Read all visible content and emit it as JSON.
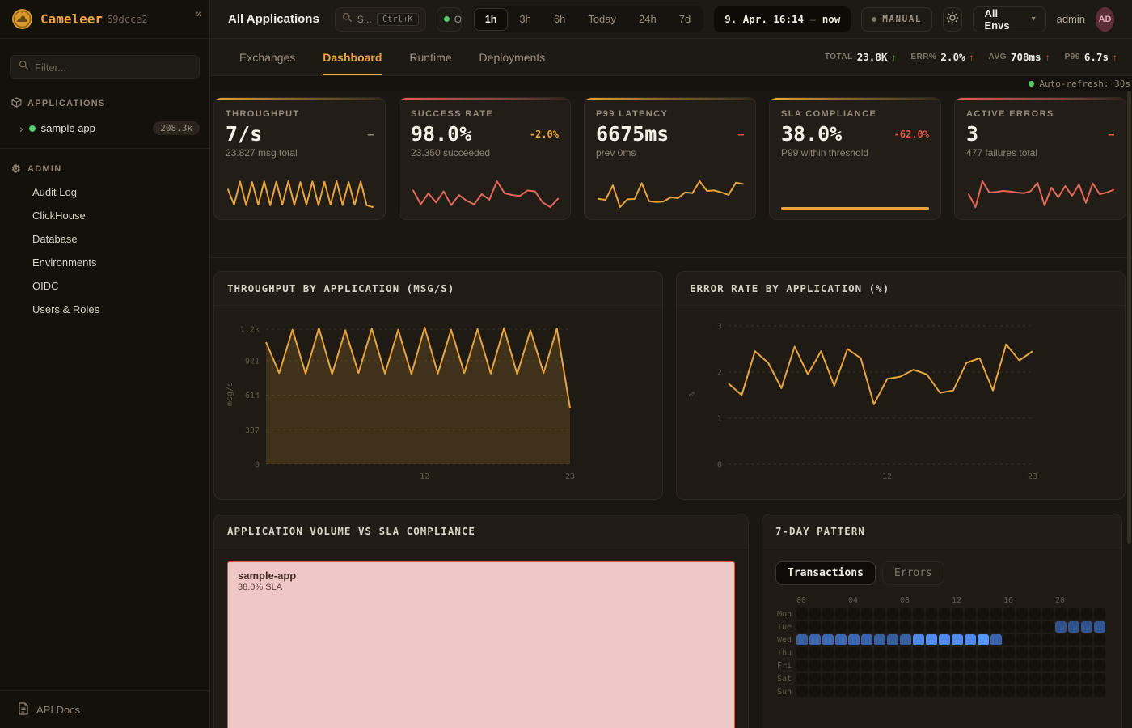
{
  "sidebar": {
    "logo_text": "Cameleer",
    "version": "69dcce2",
    "collapse_icon": "«",
    "filter_placeholder": "Filter...",
    "sections": {
      "applications_label": "APPLICATIONS",
      "admin_label": "ADMIN"
    },
    "app_item": {
      "name": "sample app",
      "badge": "208.3k",
      "status_color": "#57c96a"
    },
    "admin_items": [
      "Audit Log",
      "ClickHouse",
      "Database",
      "Environments",
      "OIDC",
      "Users & Roles"
    ],
    "footer": {
      "api_docs": "API Docs"
    }
  },
  "topbar": {
    "title": "All Applications",
    "search_text": "S...",
    "search_shortcut": "Ctrl+K",
    "online_text": "O",
    "time_ranges": [
      "1h",
      "3h",
      "6h",
      "Today",
      "24h",
      "7d"
    ],
    "active_range": "1h",
    "datetime": "9. Apr. 16:14",
    "datetime_sep": "–",
    "datetime_now": "now",
    "manual_label": "MANUAL",
    "env_select": "All Envs",
    "user": "admin",
    "avatar": "AD"
  },
  "tabs": {
    "items": [
      "Exchanges",
      "Dashboard",
      "Runtime",
      "Deployments"
    ],
    "active": "Dashboard"
  },
  "stats": [
    {
      "label": "TOTAL",
      "value": "23.8K",
      "arrow": "↑",
      "trend": "good"
    },
    {
      "label": "ERR%",
      "value": "2.0%",
      "arrow": "↑",
      "trend": "bad"
    },
    {
      "label": "AVG",
      "value": "708ms",
      "arrow": "↑",
      "trend": "bad"
    },
    {
      "label": "P99",
      "value": "6.7s",
      "arrow": "↑",
      "trend": "bad"
    }
  ],
  "auto_refresh": "Auto-refresh: 30s",
  "kpi_cards": [
    {
      "title": "THROUGHPUT",
      "value": "7/s",
      "delta": "–",
      "delta_color": "muted",
      "subtitle": "23.827 msg total",
      "accent": "orange",
      "spark": {
        "type": "line",
        "color": "#e8a53e",
        "values": [
          1060,
          800,
          1200,
          795,
          1190,
          800,
          1200,
          790,
          1195,
          800,
          1205,
          795,
          1190,
          800,
          1200,
          790,
          1195,
          800,
          1205,
          795,
          1190,
          800,
          1200,
          790,
          760
        ]
      }
    },
    {
      "title": "SUCCESS RATE",
      "value": "98.0%",
      "delta": "-2.0%",
      "delta_color": "orange",
      "subtitle": "23.350 succeeded",
      "accent": "red",
      "spark": {
        "type": "line",
        "color": "#e2695c",
        "values": [
          98.4,
          96.9,
          98.1,
          97.1,
          98.3,
          96.8,
          97.9,
          97.3,
          96.9,
          98.0,
          97.4,
          99.4,
          98.1,
          97.9,
          97.8,
          98.4,
          98.3,
          97.1,
          96.6,
          97.5
        ]
      }
    },
    {
      "title": "P99 LATENCY",
      "value": "6675ms",
      "delta": "–",
      "delta_color": "red",
      "subtitle": "prev 0ms",
      "accent": "orange",
      "spark": {
        "type": "line",
        "color": "#e8a53e",
        "values": [
          420,
          380,
          900,
          120,
          400,
          410,
          980,
          330,
          300,
          320,
          470,
          440,
          650,
          620,
          1050,
          700,
          720,
          650,
          560,
          1000,
          950
        ]
      }
    },
    {
      "title": "SLA COMPLIANCE",
      "value": "38.0%",
      "delta": "-62.0%",
      "delta_color": "red",
      "subtitle": "P99 within threshold",
      "accent": "orange",
      "spark": {
        "type": "bar",
        "color": "#e8a53e",
        "value": 38
      }
    },
    {
      "title": "ACTIVE ERRORS",
      "value": "3",
      "delta": "–",
      "delta_color": "red",
      "subtitle": "477 failures total",
      "accent": "red",
      "spark": {
        "type": "line",
        "color": "#e2695c",
        "values": [
          55,
          15,
          95,
          60,
          62,
          65,
          63,
          60,
          58,
          64,
          90,
          20,
          75,
          45,
          80,
          50,
          85,
          28,
          88,
          55,
          60,
          68
        ]
      }
    }
  ],
  "chart_data": [
    {
      "id": "throughput-by-application",
      "type": "area",
      "title": "THROUGHPUT BY APPLICATION (MSG/S)",
      "ylabel": "msg/s",
      "ylim": [
        0,
        1250
      ],
      "y_ticks": [
        {
          "v": 0,
          "label": "0"
        },
        {
          "v": 307,
          "label": "307"
        },
        {
          "v": 614,
          "label": "614"
        },
        {
          "v": 921,
          "label": "921"
        },
        {
          "v": 1200,
          "label": "1.2k"
        }
      ],
      "x_ticks": [
        {
          "pos": 12,
          "label": "12"
        },
        {
          "pos": 23,
          "label": "23"
        }
      ],
      "color": "#e8a53e",
      "fill": true,
      "series": [
        {
          "name": "sample-app",
          "values": [
            1085,
            810,
            1195,
            805,
            1210,
            800,
            1190,
            810,
            1205,
            805,
            1195,
            800,
            1215,
            805,
            1195,
            810,
            1200,
            805,
            1210,
            800,
            1190,
            810,
            1205,
            500
          ]
        }
      ]
    },
    {
      "id": "error-rate-by-application",
      "type": "line",
      "title": "ERROR RATE BY APPLICATION (%)",
      "ylabel": "%",
      "ylim": [
        0,
        3.05
      ],
      "y_ticks": [
        {
          "v": 0,
          "label": "0"
        },
        {
          "v": 1,
          "label": "1"
        },
        {
          "v": 2,
          "label": "2"
        },
        {
          "v": 3,
          "label": "3"
        }
      ],
      "x_ticks": [
        {
          "pos": 12,
          "label": "12"
        },
        {
          "pos": 23,
          "label": "23"
        }
      ],
      "color": "#e8a53e",
      "fill": false,
      "series": [
        {
          "name": "sample-app",
          "values": [
            1.75,
            1.5,
            2.45,
            2.2,
            1.65,
            2.55,
            1.95,
            2.45,
            1.7,
            2.5,
            2.3,
            1.3,
            1.85,
            1.9,
            2.05,
            1.95,
            1.55,
            1.6,
            2.2,
            2.3,
            1.6,
            2.6,
            2.25,
            2.45
          ]
        }
      ]
    },
    {
      "id": "application-volume-vs-sla",
      "type": "treemap",
      "title": "APPLICATION VOLUME VS SLA COMPLIANCE",
      "items": [
        {
          "name": "sample-app",
          "sla": "38.0% SLA",
          "fill": "#efc7c6",
          "border": "#cf5348",
          "text": "#472a24",
          "subtext": "#5d423c"
        }
      ]
    },
    {
      "id": "seven-day-pattern",
      "type": "heatmap",
      "title": "7-DAY PATTERN",
      "toggle": [
        "Transactions",
        "Errors"
      ],
      "active_toggle": "Transactions",
      "days": [
        "Mon",
        "Tue",
        "Wed",
        "Thu",
        "Fri",
        "Sat",
        "Sun"
      ],
      "hour_labels": [
        {
          "col": 0,
          "label": "00"
        },
        {
          "col": 4,
          "label": "04"
        },
        {
          "col": 8,
          "label": "08"
        },
        {
          "col": 12,
          "label": "12"
        },
        {
          "col": 16,
          "label": "16"
        },
        {
          "col": 20,
          "label": "20"
        }
      ],
      "accent": "#3f83f8",
      "cells": {
        "Mon": [
          0,
          0,
          0,
          0,
          0,
          0,
          0,
          0,
          0,
          0,
          0,
          0,
          0,
          0,
          0,
          0,
          0,
          0,
          0,
          0,
          0,
          0,
          0,
          0
        ],
        "Tue": [
          0,
          0,
          0,
          0,
          0,
          0,
          0,
          0,
          0,
          0,
          0,
          0,
          0,
          0,
          0,
          0,
          0,
          0,
          0,
          0,
          0.3,
          0.32,
          0.32,
          0.35
        ],
        "Wed": [
          0.45,
          0.5,
          0.55,
          0.55,
          0.55,
          0.5,
          0.45,
          0.42,
          0.45,
          0.85,
          0.9,
          0.88,
          0.9,
          0.88,
          1.0,
          0.5,
          0,
          0,
          0,
          0,
          0,
          0,
          0,
          0
        ],
        "Thu": [
          0,
          0,
          0,
          0,
          0,
          0,
          0,
          0,
          0,
          0,
          0,
          0,
          0,
          0,
          0,
          0,
          0,
          0,
          0,
          0,
          0,
          0,
          0,
          0
        ],
        "Fri": [
          0,
          0,
          0,
          0,
          0,
          0,
          0,
          0,
          0,
          0,
          0,
          0,
          0,
          0,
          0,
          0,
          0,
          0,
          0,
          0,
          0,
          0,
          0,
          0
        ],
        "Sat": [
          0,
          0,
          0,
          0,
          0,
          0,
          0,
          0,
          0,
          0,
          0,
          0,
          0,
          0,
          0,
          0,
          0,
          0,
          0,
          0,
          0,
          0,
          0,
          0
        ],
        "Sun": [
          0,
          0,
          0,
          0,
          0,
          0,
          0,
          0,
          0,
          0,
          0,
          0,
          0,
          0,
          0,
          0,
          0,
          0,
          0,
          0,
          0,
          0,
          0,
          0
        ]
      }
    }
  ]
}
